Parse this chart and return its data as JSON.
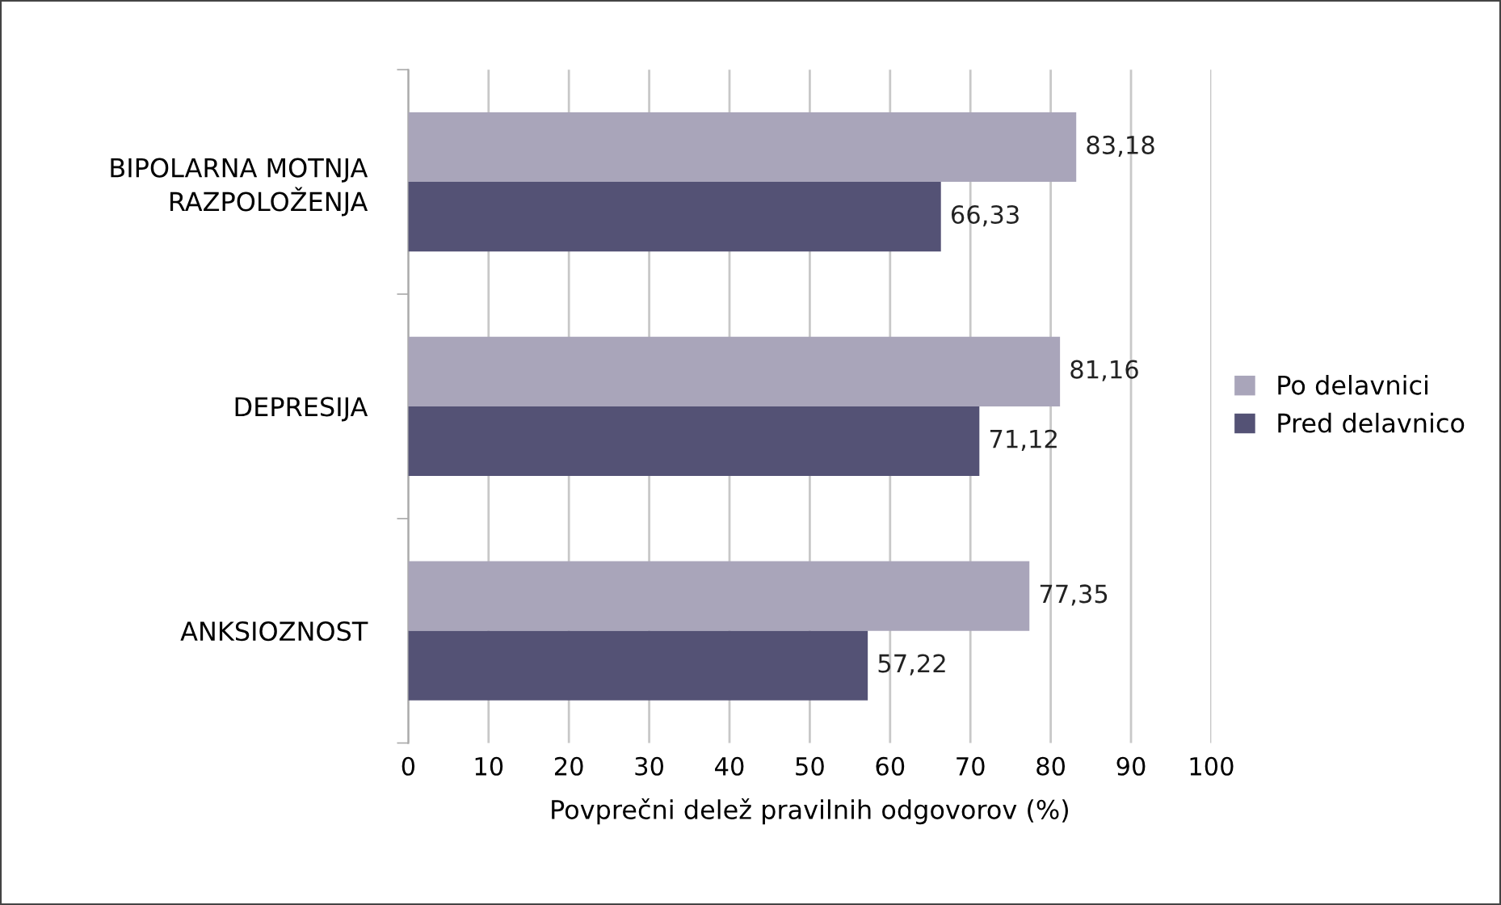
{
  "chart_data": {
    "type": "bar",
    "orientation": "horizontal",
    "xlabel": "Povprečni delež pravilnih odgovorov (%)",
    "categories": [
      "BIPOLARNA MOTNJA\nRAZPOLOŽENJA",
      "DEPRESIJA",
      "ANKSIOZNOST"
    ],
    "series": [
      {
        "name": "Po delavnici",
        "color": "#a9a5ba",
        "values": [
          83.18,
          81.16,
          77.35
        ],
        "value_labels": [
          "83,18",
          "81,16",
          "77,35"
        ]
      },
      {
        "name": "Pred delavnico",
        "color": "#545275",
        "values": [
          66.33,
          71.12,
          57.22
        ],
        "value_labels": [
          "66,33",
          "71,12",
          "57,22"
        ]
      }
    ],
    "xlim": [
      0,
      100
    ],
    "xticks": [
      0,
      10,
      20,
      30,
      40,
      50,
      60,
      70,
      80,
      90,
      100
    ],
    "grid": "x",
    "legend": "right"
  }
}
